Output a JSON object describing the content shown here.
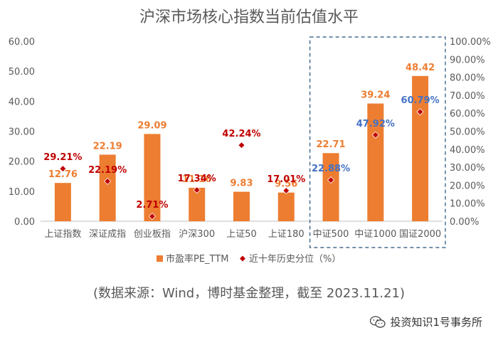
{
  "chart_data": {
    "type": "bar",
    "title": "沪深市场核心指数当前估值水平",
    "categories": [
      "上证指数",
      "深证成指",
      "创业板指",
      "沪深300",
      "上证50",
      "上证180",
      "中证500",
      "中证1000",
      "国证2000"
    ],
    "series": [
      {
        "name": "市盈率PE_TTM",
        "type": "bar",
        "axis": "left",
        "color": "#ED7D31",
        "values": [
          12.76,
          22.19,
          29.09,
          11.16,
          9.83,
          9.56,
          22.71,
          39.24,
          48.42
        ],
        "labels": [
          "12.76",
          "22.19",
          "29.09",
          "11.16",
          "9.83",
          "9.56",
          "22.71",
          "39.24",
          "48.42"
        ]
      },
      {
        "name": "近十年历史分位（%）",
        "type": "scatter",
        "axis": "right",
        "color": "#C00000",
        "values": [
          29.21,
          22.19,
          2.71,
          17.34,
          42.24,
          17.01,
          22.88,
          47.92,
          60.79
        ],
        "labels": [
          "29.21%",
          "22.19%",
          "2.71%",
          "17.34%",
          "42.24%",
          "17.01%",
          "22.88%",
          "47.92%",
          "60.79%"
        ]
      }
    ],
    "y_left": {
      "range": [
        0,
        60
      ],
      "ticks": [
        "0.00",
        "10.00",
        "20.00",
        "30.00",
        "40.00",
        "50.00",
        "60.00"
      ]
    },
    "y_right": {
      "range": [
        0,
        100
      ],
      "ticks": [
        "0.00%",
        "10.00%",
        "20.00%",
        "30.00%",
        "40.00%",
        "50.00%",
        "60.00%",
        "70.00%",
        "80.00%",
        "90.00%",
        "100.00%"
      ]
    },
    "grid": false,
    "legend_position": "bottom",
    "highlight_box_categories": [
      "中证500",
      "中证1000",
      "国证2000"
    ],
    "highlight_label_color": "#4472C4",
    "axis_text_color": "#595959"
  },
  "source_note": "(数据来源：Wind，博时基金整理，截至 2023.11.21)",
  "watermark": {
    "icon": "wechat-icon",
    "text": "投资知识1号事务所"
  }
}
